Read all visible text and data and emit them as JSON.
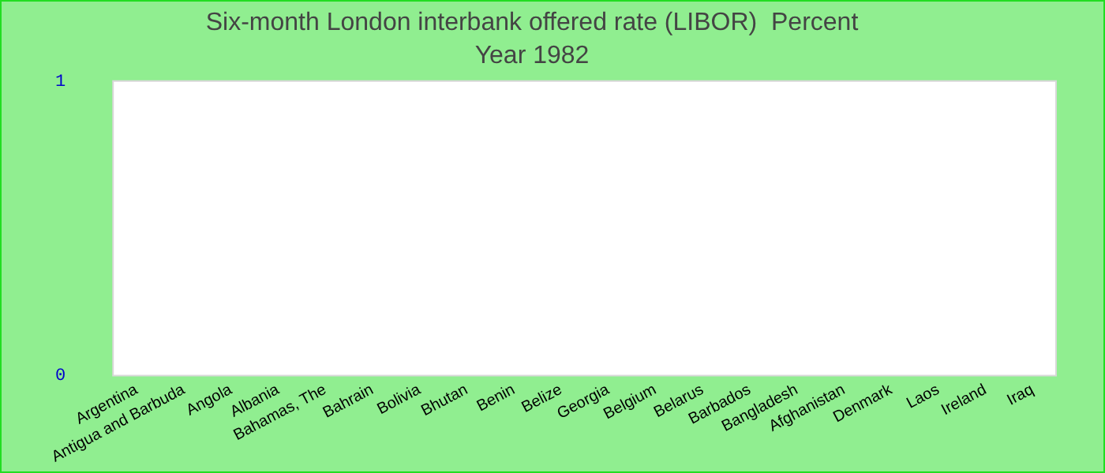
{
  "chart_data": {
    "type": "bar",
    "title": "Six-month London interbank offered rate (LIBOR)  Percent",
    "subtitle": "Year 1982",
    "categories": [
      "Argentina",
      "Antigua and Barbuda",
      "Angola",
      "Albania",
      "Bahamas, The",
      "Bahrain",
      "Bolivia",
      "Bhutan",
      "Benin",
      "Belize",
      "Georgia",
      "Belgium",
      "Belarus",
      "Barbados",
      "Bangladesh",
      "Afghanistan",
      "Denmark",
      "Laos",
      "Ireland",
      "Iraq"
    ],
    "values": [
      0,
      0,
      0,
      0,
      0,
      0,
      0,
      0,
      0,
      0,
      0,
      0,
      0,
      0,
      0,
      0,
      0,
      0,
      0,
      0
    ],
    "ylim": [
      0,
      1
    ],
    "yticks": [
      0,
      1
    ],
    "grid": false,
    "legend": false
  }
}
